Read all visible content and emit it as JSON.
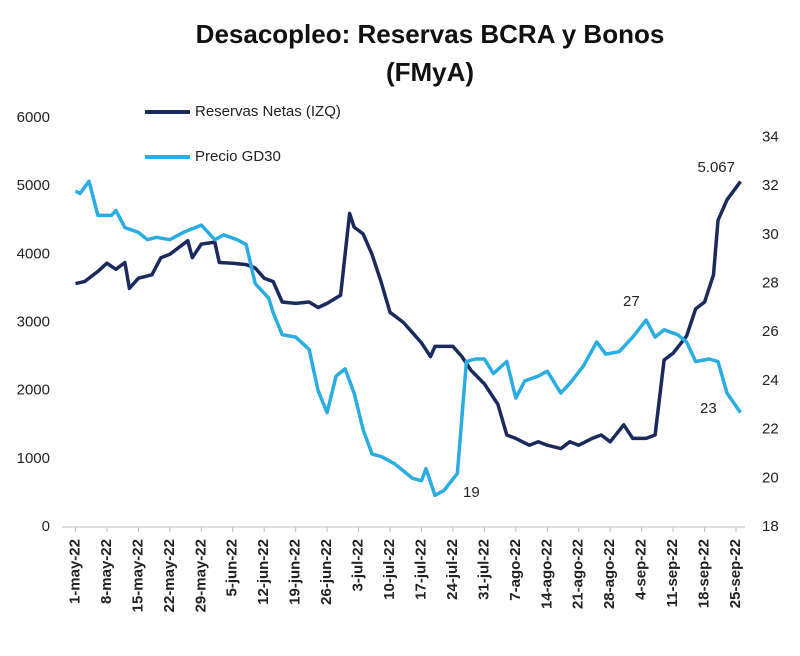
{
  "chart_data": {
    "type": "line",
    "title": [
      "Desacopleo: Reservas BCRA y Bonos",
      "(FMyA)"
    ],
    "xlim": [
      "2022-04-28",
      "2022-09-27"
    ],
    "xticks": [
      {
        "value": "2022-05-01",
        "label": "1-may-22"
      },
      {
        "value": "2022-05-08",
        "label": "8-may-22"
      },
      {
        "value": "2022-05-15",
        "label": "15-may-22"
      },
      {
        "value": "2022-05-22",
        "label": "22-may-22"
      },
      {
        "value": "2022-05-29",
        "label": "29-may-22"
      },
      {
        "value": "2022-06-05",
        "label": "5-jun-22"
      },
      {
        "value": "2022-06-12",
        "label": "12-jun-22"
      },
      {
        "value": "2022-06-19",
        "label": "19-jun-22"
      },
      {
        "value": "2022-06-26",
        "label": "26-jun-22"
      },
      {
        "value": "2022-07-03",
        "label": "3-jul-22"
      },
      {
        "value": "2022-07-10",
        "label": "10-jul-22"
      },
      {
        "value": "2022-07-17",
        "label": "17-jul-22"
      },
      {
        "value": "2022-07-24",
        "label": "24-jul-22"
      },
      {
        "value": "2022-07-31",
        "label": "31-jul-22"
      },
      {
        "value": "2022-08-07",
        "label": "7-ago-22"
      },
      {
        "value": "2022-08-14",
        "label": "14-ago-22"
      },
      {
        "value": "2022-08-21",
        "label": "21-ago-22"
      },
      {
        "value": "2022-08-28",
        "label": "28-ago-22"
      },
      {
        "value": "2022-09-04",
        "label": "4-sep-22"
      },
      {
        "value": "2022-09-11",
        "label": "11-sep-22"
      },
      {
        "value": "2022-09-18",
        "label": "18-sep-22"
      },
      {
        "value": "2022-09-25",
        "label": "25-sep-22"
      }
    ],
    "ylim": [
      0,
      6000
    ],
    "yticks": [
      0,
      1000,
      2000,
      3000,
      4000,
      5000,
      6000
    ],
    "y2lim": [
      18,
      34.8
    ],
    "y2ticks": [
      18,
      20,
      22,
      24,
      26,
      28,
      30,
      32,
      34
    ],
    "legend": "upper-left",
    "series": [
      {
        "name": "Reservas Netas (IZQ)",
        "color": "#1b2a5c",
        "x": [
          "2022-05-01",
          "2022-05-03",
          "2022-05-06",
          "2022-05-08",
          "2022-05-10",
          "2022-05-12",
          "2022-05-13",
          "2022-05-15",
          "2022-05-18",
          "2022-05-20",
          "2022-05-22",
          "2022-05-24",
          "2022-05-26",
          "2022-05-27",
          "2022-05-29",
          "2022-06-01",
          "2022-06-02",
          "2022-06-05",
          "2022-06-08",
          "2022-06-10",
          "2022-06-12",
          "2022-06-14",
          "2022-06-16",
          "2022-06-19",
          "2022-06-22",
          "2022-06-24",
          "2022-06-26",
          "2022-06-29",
          "2022-07-01",
          "2022-07-02",
          "2022-07-04",
          "2022-07-06",
          "2022-07-08",
          "2022-07-10",
          "2022-07-13",
          "2022-07-15",
          "2022-07-17",
          "2022-07-19",
          "2022-07-20",
          "2022-07-24",
          "2022-07-26",
          "2022-07-28",
          "2022-07-31",
          "2022-08-03",
          "2022-08-05",
          "2022-08-07",
          "2022-08-10",
          "2022-08-12",
          "2022-08-14",
          "2022-08-17",
          "2022-08-19",
          "2022-08-21",
          "2022-08-24",
          "2022-08-26",
          "2022-08-28",
          "2022-08-31",
          "2022-09-02",
          "2022-09-05",
          "2022-09-07",
          "2022-09-09",
          "2022-09-11",
          "2022-09-14",
          "2022-09-16",
          "2022-09-18",
          "2022-09-20",
          "2022-09-21",
          "2022-09-23",
          "2022-09-26"
        ],
        "values": [
          3570,
          3600,
          3750,
          3870,
          3780,
          3880,
          3500,
          3650,
          3700,
          3950,
          4000,
          4100,
          4200,
          3950,
          4150,
          4180,
          3880,
          3870,
          3850,
          3800,
          3650,
          3600,
          3300,
          3280,
          3300,
          3220,
          3280,
          3400,
          4600,
          4400,
          4300,
          4000,
          3600,
          3150,
          3000,
          2850,
          2700,
          2500,
          2650,
          2650,
          2500,
          2300,
          2100,
          1800,
          1350,
          1300,
          1200,
          1250,
          1200,
          1150,
          1250,
          1200,
          1300,
          1350,
          1250,
          1500,
          1300,
          1300,
          1350,
          2450,
          2550,
          2800,
          3200,
          3300,
          3700,
          4500,
          4800,
          5067
        ]
      },
      {
        "name": "Precio GD30",
        "color": "#29ade3",
        "axis": "y2",
        "x": [
          "2022-05-01",
          "2022-05-02",
          "2022-05-04",
          "2022-05-06",
          "2022-05-09",
          "2022-05-10",
          "2022-05-12",
          "2022-05-15",
          "2022-05-17",
          "2022-05-19",
          "2022-05-22",
          "2022-05-25",
          "2022-05-29",
          "2022-06-01",
          "2022-06-03",
          "2022-06-06",
          "2022-06-08",
          "2022-06-10",
          "2022-06-13",
          "2022-06-14",
          "2022-06-16",
          "2022-06-19",
          "2022-06-22",
          "2022-06-24",
          "2022-06-26",
          "2022-06-28",
          "2022-06-30",
          "2022-07-02",
          "2022-07-04",
          "2022-07-06",
          "2022-07-08",
          "2022-07-11",
          "2022-07-13",
          "2022-07-15",
          "2022-07-17",
          "2022-07-18",
          "2022-07-20",
          "2022-07-22",
          "2022-07-25",
          "2022-07-27",
          "2022-07-29",
          "2022-07-31",
          "2022-08-02",
          "2022-08-05",
          "2022-08-07",
          "2022-08-09",
          "2022-08-12",
          "2022-08-14",
          "2022-08-17",
          "2022-08-19",
          "2022-08-22",
          "2022-08-25",
          "2022-08-27",
          "2022-08-30",
          "2022-09-02",
          "2022-09-05",
          "2022-09-07",
          "2022-09-09",
          "2022-09-12",
          "2022-09-14",
          "2022-09-16",
          "2022-09-19",
          "2022-09-21",
          "2022-09-23",
          "2022-09-26"
        ],
        "values": [
          31.8,
          31.7,
          32.2,
          30.8,
          30.8,
          31.0,
          30.3,
          30.1,
          29.8,
          29.9,
          29.8,
          30.1,
          30.4,
          29.8,
          30.0,
          29.8,
          29.6,
          28.0,
          27.4,
          26.8,
          25.9,
          25.8,
          25.3,
          23.6,
          22.7,
          24.2,
          24.5,
          23.5,
          22.0,
          21.0,
          20.9,
          20.6,
          20.3,
          20.0,
          19.9,
          20.4,
          19.3,
          19.5,
          20.2,
          24.8,
          24.9,
          24.9,
          24.3,
          24.8,
          23.3,
          24.0,
          24.2,
          24.4,
          23.5,
          23.9,
          24.6,
          25.6,
          25.1,
          25.2,
          25.8,
          26.5,
          25.8,
          26.1,
          25.9,
          25.6,
          24.8,
          24.9,
          24.8,
          23.5,
          22.7
        ]
      }
    ],
    "annotations": [
      "5.067",
      "19",
      "27",
      "23"
    ]
  }
}
